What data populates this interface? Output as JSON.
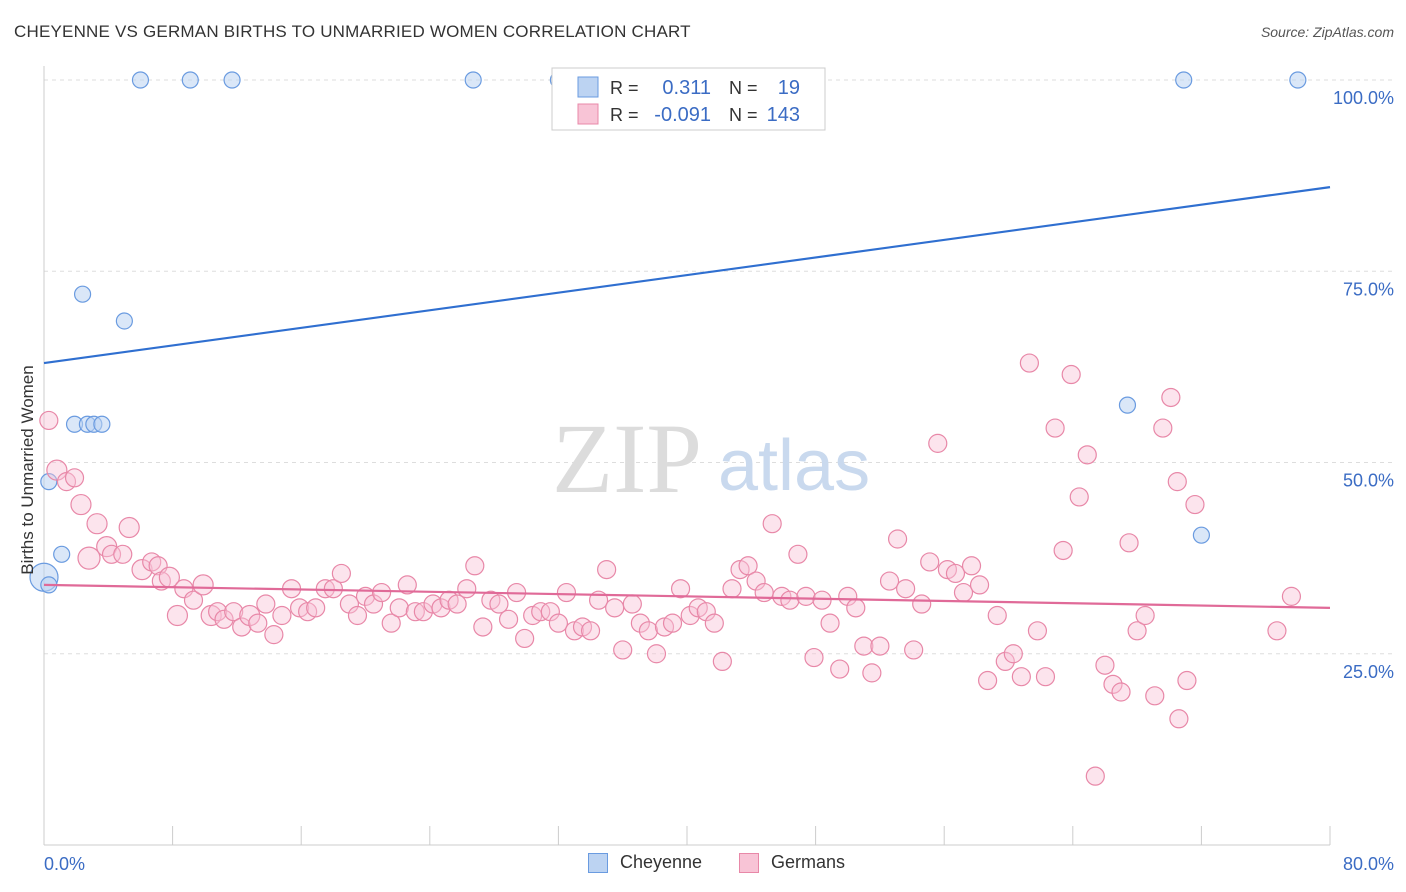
{
  "title": "CHEYENNE VS GERMAN BIRTHS TO UNMARRIED WOMEN CORRELATION CHART",
  "source": "Source: ZipAtlas.com",
  "watermark": {
    "zip": "ZIP",
    "atlas": "atlas"
  },
  "chart_data": {
    "type": "scatter",
    "title": "CHEYENNE VS GERMAN BIRTHS TO UNMARRIED WOMEN CORRELATION CHART",
    "xlabel": "",
    "ylabel": "Births to Unmarried Women",
    "xlim": [
      0,
      80
    ],
    "ylim": [
      0,
      100
    ],
    "x_tick_labels": [
      "0.0%",
      "80.0%"
    ],
    "y_ticks": [
      25,
      50,
      75,
      100
    ],
    "y_tick_labels": [
      "25.0%",
      "50.0%",
      "75.0%",
      "100.0%"
    ],
    "legend": [
      {
        "name": "Cheyenne",
        "R_label": "R =",
        "R": "0.311",
        "N_label": "N =",
        "N": "19",
        "color": "#6a9be0",
        "fill": "#bcd3f2"
      },
      {
        "name": "Germans",
        "R_label": "R =",
        "R": "-0.091",
        "N_label": "N =",
        "N": "143",
        "color": "#e888a8",
        "fill": "#f8c4d6"
      }
    ],
    "series": [
      {
        "name": "Cheyenne",
        "color": "#6a9be0",
        "trend": {
          "x0": 0,
          "y0": 63.0,
          "x1": 80,
          "y1": 86.0
        },
        "points": [
          [
            0.0,
            35.0,
            28
          ],
          [
            0.3,
            34.0,
            16
          ],
          [
            0.3,
            47.5,
            16
          ],
          [
            1.1,
            38.0,
            16
          ],
          [
            1.9,
            55.0,
            16
          ],
          [
            2.4,
            72.0,
            16
          ],
          [
            2.7,
            55.0,
            16
          ],
          [
            3.1,
            55.0,
            16
          ],
          [
            3.6,
            55.0,
            16
          ],
          [
            5.0,
            68.5,
            16
          ],
          [
            6.0,
            100.0,
            16
          ],
          [
            9.1,
            100.0,
            16
          ],
          [
            11.7,
            100.0,
            16
          ],
          [
            26.7,
            100.0,
            16
          ],
          [
            70.9,
            100.0,
            16
          ],
          [
            78.0,
            100.0,
            16
          ],
          [
            67.4,
            57.5,
            16
          ],
          [
            72.0,
            40.5,
            16
          ],
          [
            32.0,
            100.0,
            16
          ]
        ]
      },
      {
        "name": "Germans",
        "color": "#e888a8",
        "trend": {
          "x0": 0,
          "y0": 34.0,
          "x1": 80,
          "y1": 31.0
        },
        "points": [
          [
            0.3,
            55.5,
            18
          ],
          [
            0.8,
            49.0,
            20
          ],
          [
            1.4,
            47.5,
            18
          ],
          [
            1.9,
            48.0,
            18
          ],
          [
            2.3,
            44.5,
            20
          ],
          [
            2.8,
            37.5,
            22
          ],
          [
            3.3,
            42.0,
            20
          ],
          [
            3.9,
            39.0,
            20
          ],
          [
            4.2,
            38.0,
            18
          ],
          [
            4.9,
            38.0,
            18
          ],
          [
            5.3,
            41.5,
            20
          ],
          [
            6.1,
            36.0,
            20
          ],
          [
            6.7,
            37.0,
            18
          ],
          [
            7.1,
            36.5,
            18
          ],
          [
            7.3,
            34.5,
            18
          ],
          [
            7.8,
            35.0,
            20
          ],
          [
            8.3,
            30.0,
            20
          ],
          [
            8.7,
            33.5,
            18
          ],
          [
            9.3,
            32.0,
            18
          ],
          [
            9.9,
            34.0,
            20
          ],
          [
            10.4,
            30.0,
            20
          ],
          [
            10.8,
            30.5,
            18
          ],
          [
            11.2,
            29.5,
            18
          ],
          [
            11.8,
            30.5,
            18
          ],
          [
            12.3,
            28.5,
            18
          ],
          [
            12.8,
            30.0,
            20
          ],
          [
            13.3,
            29.0,
            18
          ],
          [
            13.8,
            31.5,
            18
          ],
          [
            14.3,
            27.5,
            18
          ],
          [
            14.8,
            30.0,
            18
          ],
          [
            15.4,
            33.5,
            18
          ],
          [
            15.9,
            31.0,
            18
          ],
          [
            16.4,
            30.5,
            18
          ],
          [
            16.9,
            31.0,
            18
          ],
          [
            17.5,
            33.5,
            18
          ],
          [
            18.0,
            33.5,
            18
          ],
          [
            18.5,
            35.5,
            18
          ],
          [
            19.0,
            31.5,
            18
          ],
          [
            19.5,
            30.0,
            18
          ],
          [
            20.0,
            32.5,
            18
          ],
          [
            20.5,
            31.5,
            18
          ],
          [
            21.0,
            33.0,
            18
          ],
          [
            21.6,
            29.0,
            18
          ],
          [
            22.1,
            31.0,
            18
          ],
          [
            22.6,
            34.0,
            18
          ],
          [
            23.1,
            30.5,
            18
          ],
          [
            23.6,
            30.5,
            18
          ],
          [
            24.2,
            31.5,
            18
          ],
          [
            24.7,
            31.0,
            18
          ],
          [
            25.2,
            32.0,
            18
          ],
          [
            25.7,
            31.5,
            18
          ],
          [
            26.3,
            33.5,
            18
          ],
          [
            26.8,
            36.5,
            18
          ],
          [
            27.3,
            28.5,
            18
          ],
          [
            27.8,
            32.0,
            18
          ],
          [
            28.3,
            31.5,
            18
          ],
          [
            28.9,
            29.5,
            18
          ],
          [
            29.4,
            33.0,
            18
          ],
          [
            29.9,
            27.0,
            18
          ],
          [
            30.4,
            30.0,
            18
          ],
          [
            30.9,
            30.5,
            18
          ],
          [
            31.5,
            30.5,
            18
          ],
          [
            32.0,
            29.0,
            18
          ],
          [
            32.5,
            33.0,
            18
          ],
          [
            33.0,
            28.0,
            18
          ],
          [
            33.5,
            28.5,
            18
          ],
          [
            34.0,
            28.0,
            18
          ],
          [
            34.5,
            32.0,
            18
          ],
          [
            35.0,
            36.0,
            18
          ],
          [
            35.5,
            31.0,
            18
          ],
          [
            36.0,
            25.5,
            18
          ],
          [
            36.6,
            31.5,
            18
          ],
          [
            37.1,
            29.0,
            18
          ],
          [
            37.6,
            28.0,
            18
          ],
          [
            38.1,
            25.0,
            18
          ],
          [
            38.6,
            28.5,
            18
          ],
          [
            39.1,
            29.0,
            18
          ],
          [
            39.6,
            33.5,
            18
          ],
          [
            40.2,
            30.0,
            18
          ],
          [
            40.7,
            31.0,
            18
          ],
          [
            41.2,
            30.5,
            18
          ],
          [
            41.7,
            29.0,
            18
          ],
          [
            42.2,
            24.0,
            18
          ],
          [
            42.8,
            33.5,
            18
          ],
          [
            43.3,
            36.0,
            18
          ],
          [
            43.8,
            36.5,
            18
          ],
          [
            44.3,
            34.5,
            18
          ],
          [
            44.8,
            33.0,
            18
          ],
          [
            45.3,
            42.0,
            18
          ],
          [
            45.9,
            32.5,
            18
          ],
          [
            46.4,
            32.0,
            18
          ],
          [
            46.9,
            38.0,
            18
          ],
          [
            47.4,
            32.5,
            18
          ],
          [
            47.9,
            24.5,
            18
          ],
          [
            48.4,
            32.0,
            18
          ],
          [
            48.9,
            29.0,
            18
          ],
          [
            49.5,
            23.0,
            18
          ],
          [
            50.0,
            32.5,
            18
          ],
          [
            50.5,
            31.0,
            18
          ],
          [
            51.0,
            26.0,
            18
          ],
          [
            51.5,
            22.5,
            18
          ],
          [
            52.0,
            26.0,
            18
          ],
          [
            52.6,
            34.5,
            18
          ],
          [
            53.1,
            40.0,
            18
          ],
          [
            53.6,
            33.5,
            18
          ],
          [
            54.1,
            25.5,
            18
          ],
          [
            54.6,
            31.5,
            18
          ],
          [
            55.1,
            37.0,
            18
          ],
          [
            55.6,
            52.5,
            18
          ],
          [
            56.2,
            36.0,
            18
          ],
          [
            56.7,
            35.5,
            18
          ],
          [
            57.2,
            33.0,
            18
          ],
          [
            57.7,
            36.5,
            18
          ],
          [
            58.2,
            34.0,
            18
          ],
          [
            58.7,
            21.5,
            18
          ],
          [
            59.3,
            30.0,
            18
          ],
          [
            59.8,
            24.0,
            18
          ],
          [
            60.3,
            25.0,
            18
          ],
          [
            60.8,
            22.0,
            18
          ],
          [
            61.3,
            63.0,
            18
          ],
          [
            61.8,
            28.0,
            18
          ],
          [
            62.3,
            22.0,
            18
          ],
          [
            62.9,
            54.5,
            18
          ],
          [
            63.4,
            38.5,
            18
          ],
          [
            63.9,
            61.5,
            18
          ],
          [
            64.4,
            45.5,
            18
          ],
          [
            64.9,
            51.0,
            18
          ],
          [
            65.4,
            9.0,
            18
          ],
          [
            66.0,
            23.5,
            18
          ],
          [
            66.5,
            21.0,
            18
          ],
          [
            67.0,
            20.0,
            18
          ],
          [
            67.5,
            39.5,
            18
          ],
          [
            68.0,
            28.0,
            18
          ],
          [
            68.5,
            30.0,
            18
          ],
          [
            69.1,
            19.5,
            18
          ],
          [
            69.6,
            54.5,
            18
          ],
          [
            70.1,
            58.5,
            18
          ],
          [
            70.6,
            16.5,
            18
          ],
          [
            71.1,
            21.5,
            18
          ],
          [
            71.6,
            44.5,
            18
          ],
          [
            70.5,
            47.5,
            18
          ],
          [
            76.7,
            28.0,
            18
          ],
          [
            77.6,
            32.5,
            18
          ]
        ]
      }
    ]
  }
}
